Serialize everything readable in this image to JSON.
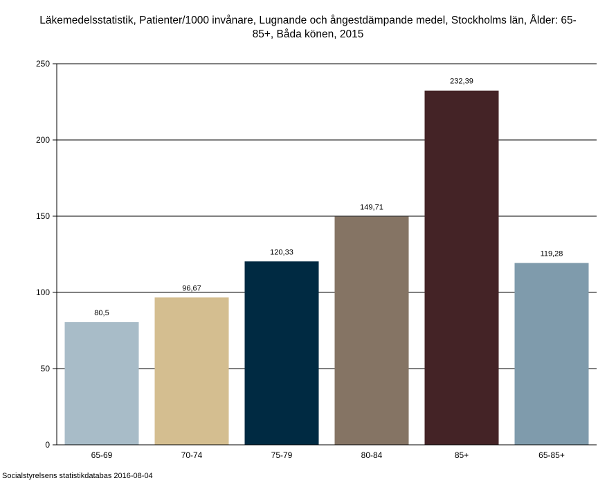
{
  "title_line1": "Läkemedelsstatistik, Patienter/1000 invånare, Lugnande och ångestdämpande medel, Stockholms län, Ålder: 65-",
  "title_line2": "85+, Båda könen, 2015",
  "source": "Socialstyrelsens statistikdatabas 2016-08-04",
  "chart_data": {
    "type": "bar",
    "title": "Läkemedelsstatistik, Patienter/1000 invånare, Lugnande och ångestdämpande medel, Stockholms län, Ålder: 65-85+, Båda könen, 2015",
    "categories": [
      "65-69",
      "70-74",
      "75-79",
      "80-84",
      "85+",
      "65-85+"
    ],
    "values": [
      80.5,
      96.67,
      120.33,
      149.71,
      232.39,
      119.28
    ],
    "value_labels": [
      "80,5",
      "96,67",
      "120,33",
      "149,71",
      "232,39",
      "119,28"
    ],
    "colors": [
      "#a8bcc8",
      "#d4be90",
      "#002a42",
      "#857464",
      "#442326",
      "#7f9bac"
    ],
    "ylim": [
      0,
      250
    ],
    "yticks": [
      0,
      50,
      100,
      150,
      200,
      250
    ],
    "grid": true,
    "legend": "none",
    "xlabel": "",
    "ylabel": ""
  }
}
